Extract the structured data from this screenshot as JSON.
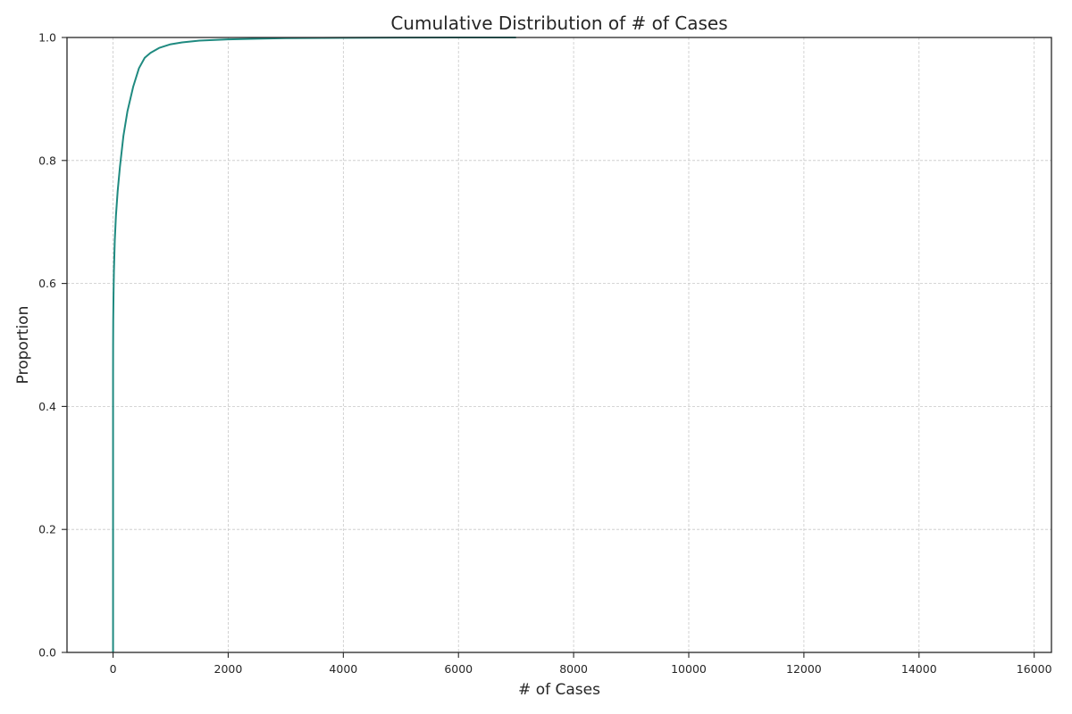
{
  "chart_data": {
    "type": "line",
    "title": "Cumulative Distribution of # of Cases",
    "xlabel": "# of Cases",
    "ylabel": "Proportion",
    "xlim": [
      -800,
      16300
    ],
    "ylim": [
      0,
      1
    ],
    "xticks": [
      0,
      2000,
      4000,
      6000,
      8000,
      10000,
      12000,
      14000,
      16000
    ],
    "yticks": [
      0.0,
      0.2,
      0.4,
      0.6,
      0.8,
      1.0
    ],
    "xtick_labels": [
      "0",
      "2000",
      "4000",
      "6000",
      "8000",
      "10000",
      "12000",
      "14000",
      "16000"
    ],
    "ytick_labels": [
      "0.0",
      "0.2",
      "0.4",
      "0.6",
      "0.8",
      "1.0"
    ],
    "grid": true,
    "series": [
      {
        "color": "#1f8a80",
        "x": [
          0,
          0,
          1,
          3,
          8,
          15,
          30,
          50,
          80,
          120,
          180,
          250,
          350,
          450,
          550,
          650,
          800,
          1000,
          1200,
          1500,
          2000,
          2500,
          3000,
          4000,
          5000,
          6000,
          7000
        ],
        "y": [
          0.0,
          0.45,
          0.5,
          0.54,
          0.58,
          0.62,
          0.67,
          0.71,
          0.75,
          0.79,
          0.84,
          0.88,
          0.92,
          0.95,
          0.967,
          0.975,
          0.983,
          0.989,
          0.992,
          0.995,
          0.997,
          0.998,
          0.999,
          0.9995,
          0.9998,
          1.0,
          1.0
        ]
      }
    ]
  }
}
